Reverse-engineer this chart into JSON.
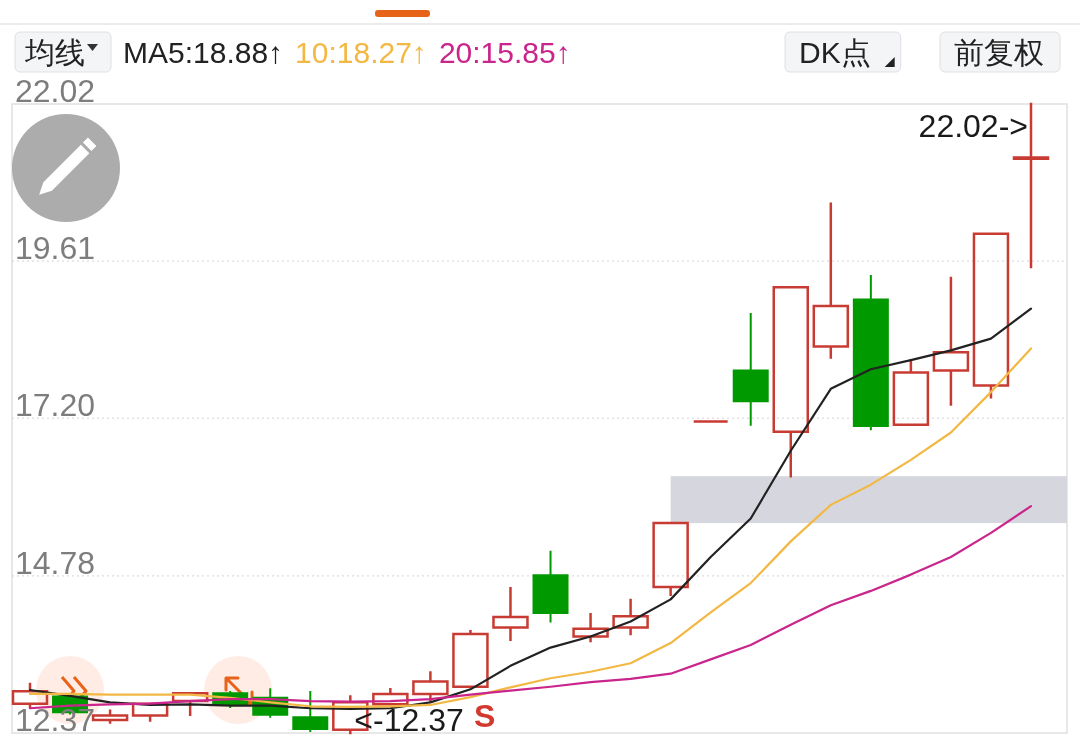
{
  "chart_data": {
    "type": "candlestick",
    "categories": [
      null,
      null,
      null,
      null,
      null,
      null,
      null,
      null,
      null,
      null,
      null,
      null,
      null,
      null,
      null,
      null,
      null,
      null,
      null,
      null,
      null,
      null,
      null,
      null,
      null,
      null
    ],
    "ohlc": [
      [
        12.82,
        13.12,
        12.77,
        13.01
      ],
      [
        12.93,
        12.96,
        12.67,
        12.69
      ],
      [
        12.57,
        12.71,
        12.53,
        12.64
      ],
      [
        12.64,
        12.82,
        12.56,
        12.82
      ],
      [
        12.86,
        12.98,
        12.65,
        12.98
      ],
      [
        12.98,
        13.0,
        12.77,
        12.8
      ],
      [
        12.91,
        13.04,
        12.62,
        12.65
      ],
      [
        12.61,
        13.0,
        12.4,
        12.43
      ],
      [
        12.42,
        12.93,
        12.37,
        12.84
      ],
      [
        12.81,
        13.04,
        12.81,
        12.97
      ],
      [
        12.97,
        13.3,
        12.86,
        13.16
      ],
      [
        13.08,
        13.93,
        13.08,
        13.89
      ],
      [
        13.99,
        14.59,
        13.8,
        14.15
      ],
      [
        14.79,
        15.15,
        14.08,
        14.21
      ],
      [
        13.85,
        14.19,
        13.78,
        13.97
      ],
      [
        13.99,
        14.41,
        13.89,
        14.16
      ],
      [
        14.61,
        15.59,
        14.49,
        15.59
      ],
      [
        17.15,
        17.15,
        17.15,
        17.15
      ],
      [
        17.93,
        18.8,
        17.1,
        17.46
      ],
      [
        16.99,
        19.21,
        16.31,
        19.21
      ],
      [
        18.3,
        20.49,
        18.13,
        18.92
      ],
      [
        19.02,
        19.38,
        17.03,
        17.08
      ],
      [
        17.1,
        18.09,
        17.1,
        17.9
      ],
      [
        17.93,
        19.35,
        17.41,
        18.21
      ],
      [
        17.7,
        20.03,
        17.52,
        20.03
      ],
      [
        21.18,
        22.02,
        19.52,
        21.2
      ]
    ],
    "colors": [
      "#c83b32",
      "#009900",
      "#c83b32",
      "#c83b32",
      "#c83b32",
      "#009900",
      "#009900",
      "#009900",
      "#c83b32",
      "#c83b32",
      "#c83b32",
      "#c83b32",
      "#c83b32",
      "#009900",
      "#c83b32",
      "#c83b32",
      "#c83b32",
      "#c83b32",
      "#009900",
      "#c83b32",
      "#c83b32",
      "#009900",
      "#c83b32",
      "#c83b32",
      "#c83b32",
      "#c83b32"
    ],
    "series": [
      {
        "name": "MA5:18.88↑",
        "type": "line",
        "color": "#222222",
        "values": [
          13.03,
          12.94,
          12.84,
          12.8,
          12.81,
          12.79,
          12.79,
          12.75,
          12.74,
          12.75,
          12.84,
          13.04,
          13.4,
          13.68,
          13.85,
          14.08,
          14.42,
          15.07,
          15.66,
          16.7,
          17.65,
          17.95,
          18.09,
          18.24,
          18.42,
          18.88
        ]
      },
      {
        "name": "10:18.27↑",
        "type": "line",
        "color": "#f2b843",
        "values": [
          12.97,
          12.97,
          12.96,
          12.96,
          12.96,
          12.91,
          12.84,
          12.78,
          12.77,
          12.78,
          12.8,
          12.92,
          13.07,
          13.21,
          13.31,
          13.44,
          13.75,
          14.22,
          14.67,
          15.31,
          15.87,
          16.18,
          16.56,
          16.98,
          17.6,
          18.27
        ]
      },
      {
        "name": "20:15.85↑",
        "type": "line",
        "color": "#c9258c",
        "values": [
          12.75,
          12.79,
          12.81,
          12.82,
          12.86,
          12.89,
          12.89,
          12.86,
          12.85,
          12.86,
          12.89,
          12.96,
          13.02,
          13.08,
          13.15,
          13.2,
          13.28,
          13.5,
          13.72,
          14.03,
          14.33,
          14.55,
          14.8,
          15.07,
          15.44,
          15.85
        ]
      }
    ],
    "ylim": [
      12.37,
      22.02
    ],
    "yticks": [
      12.37,
      14.78,
      {
        "value": 17.2,
        "label": "17.20"
      },
      19.61,
      22.02
    ],
    "grid": "y",
    "tick_labels": "y",
    "legend": "top left",
    "legend_title": "均线",
    "bands": [
      {
        "axis": "y",
        "from": 15.59,
        "to": 16.31,
        "color": "#d6d7de"
      }
    ],
    "annotations": [
      "DK点",
      "前复权",
      "S",
      "22.02->",
      "<-12.37"
    ]
  }
}
